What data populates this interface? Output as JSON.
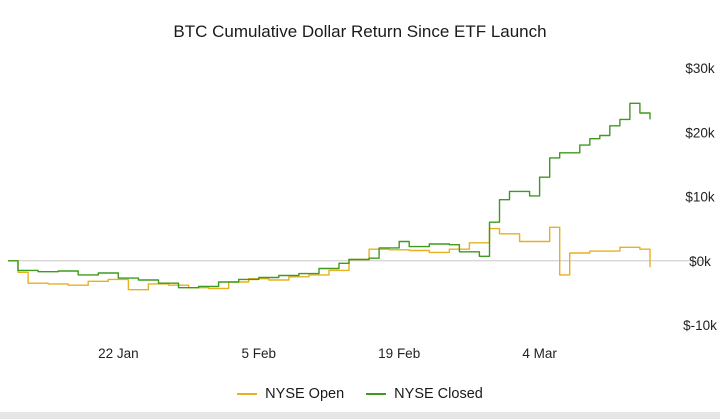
{
  "chart_data": {
    "type": "line",
    "title": "BTC Cumulative Dollar Return Since ETF Launch",
    "xlabel": "",
    "ylabel": "",
    "x_range": [
      "2024-01-11",
      "2024-03-16"
    ],
    "ylim": [
      -10000,
      30000
    ],
    "y_ticks": [
      30000,
      20000,
      10000,
      0,
      -10000
    ],
    "y_tick_labels": [
      "$30k",
      "$20k",
      "$10k",
      "$0k",
      "$-10k"
    ],
    "x_ticks": [
      "2024-01-22",
      "2024-02-05",
      "2024-02-19",
      "2024-03-04"
    ],
    "x_tick_labels": [
      "22 Jan",
      "5 Feb",
      "19 Feb",
      "4 Mar"
    ],
    "zero_line": true,
    "grid": false,
    "legend_position": "bottom",
    "series": [
      {
        "name": "NYSE Open",
        "color": "#e8b020",
        "points": [
          [
            "2024-01-11",
            0
          ],
          [
            "2024-01-12",
            -1800
          ],
          [
            "2024-01-13",
            -3500
          ],
          [
            "2024-01-15",
            -3600
          ],
          [
            "2024-01-17",
            -3800
          ],
          [
            "2024-01-19",
            -3200
          ],
          [
            "2024-01-21",
            -2900
          ],
          [
            "2024-01-23",
            -4500
          ],
          [
            "2024-01-25",
            -3600
          ],
          [
            "2024-01-27",
            -3800
          ],
          [
            "2024-01-29",
            -4200
          ],
          [
            "2024-01-31",
            -4300
          ],
          [
            "2024-02-02",
            -3300
          ],
          [
            "2024-02-04",
            -2800
          ],
          [
            "2024-02-06",
            -3000
          ],
          [
            "2024-02-08",
            -2500
          ],
          [
            "2024-02-10",
            -2200
          ],
          [
            "2024-02-12",
            -1500
          ],
          [
            "2024-02-14",
            200
          ],
          [
            "2024-02-16",
            1800
          ],
          [
            "2024-02-18",
            1700
          ],
          [
            "2024-02-20",
            1600
          ],
          [
            "2024-02-22",
            1300
          ],
          [
            "2024-02-24",
            1800
          ],
          [
            "2024-02-26",
            2800
          ],
          [
            "2024-02-28",
            5000
          ],
          [
            "2024-02-29",
            4200
          ],
          [
            "2024-03-02",
            3000
          ],
          [
            "2024-03-05",
            5200
          ],
          [
            "2024-03-06",
            -2200
          ],
          [
            "2024-03-07",
            1200
          ],
          [
            "2024-03-09",
            1500
          ],
          [
            "2024-03-12",
            2100
          ],
          [
            "2024-03-14",
            1800
          ],
          [
            "2024-03-15",
            -1000
          ]
        ]
      },
      {
        "name": "NYSE Closed",
        "color": "#3e9a1e",
        "points": [
          [
            "2024-01-11",
            0
          ],
          [
            "2024-01-12",
            -1500
          ],
          [
            "2024-01-14",
            -1700
          ],
          [
            "2024-01-16",
            -1600
          ],
          [
            "2024-01-18",
            -2200
          ],
          [
            "2024-01-20",
            -1900
          ],
          [
            "2024-01-22",
            -2700
          ],
          [
            "2024-01-24",
            -3000
          ],
          [
            "2024-01-26",
            -3500
          ],
          [
            "2024-01-28",
            -4200
          ],
          [
            "2024-01-30",
            -4000
          ],
          [
            "2024-02-01",
            -3300
          ],
          [
            "2024-02-03",
            -2900
          ],
          [
            "2024-02-05",
            -2600
          ],
          [
            "2024-02-07",
            -2300
          ],
          [
            "2024-02-09",
            -2000
          ],
          [
            "2024-02-11",
            -1200
          ],
          [
            "2024-02-13",
            -400
          ],
          [
            "2024-02-14",
            200
          ],
          [
            "2024-02-16",
            400
          ],
          [
            "2024-02-17",
            2000
          ],
          [
            "2024-02-19",
            3000
          ],
          [
            "2024-02-20",
            2200
          ],
          [
            "2024-02-22",
            2600
          ],
          [
            "2024-02-24",
            2500
          ],
          [
            "2024-02-25",
            1400
          ],
          [
            "2024-02-27",
            700
          ],
          [
            "2024-02-28",
            6000
          ],
          [
            "2024-02-29",
            9500
          ],
          [
            "2024-03-01",
            10800
          ],
          [
            "2024-03-03",
            10100
          ],
          [
            "2024-03-04",
            13000
          ],
          [
            "2024-03-05",
            16000
          ],
          [
            "2024-03-06",
            16800
          ],
          [
            "2024-03-08",
            18000
          ],
          [
            "2024-03-09",
            19000
          ],
          [
            "2024-03-10",
            19500
          ],
          [
            "2024-03-11",
            21000
          ],
          [
            "2024-03-12",
            22000
          ],
          [
            "2024-03-13",
            24500
          ],
          [
            "2024-03-14",
            23000
          ],
          [
            "2024-03-15",
            22000
          ]
        ]
      }
    ]
  }
}
